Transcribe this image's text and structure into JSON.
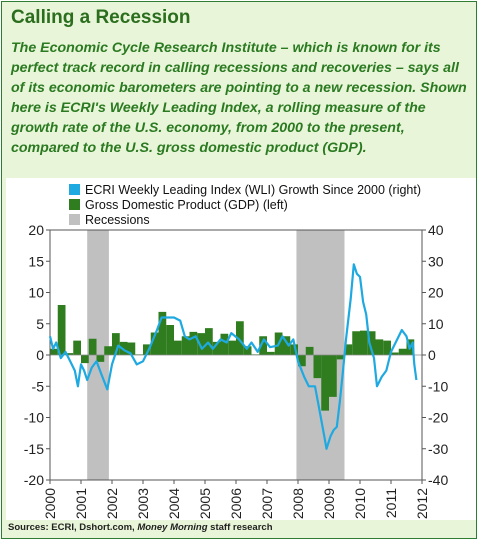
{
  "header": {
    "title": "Calling a Recession",
    "description": "The Economic Cycle Research Institute – which is known for its perfect track record in calling recessions and recoveries – says all of its economic barometers are pointing to a new recession. Shown here is ECRI's Weekly Leading Index, a rolling measure of the growth rate of the U.S. economy, from 2000 to the present, compared to the U.S. gross domestic product (GDP)."
  },
  "footer": {
    "source_prefix": "Sources: ECRI, Dshort.com, ",
    "source_italic": "Money Morning",
    "source_suffix": " staff research"
  },
  "colors": {
    "wli": "#1fa9e1",
    "gdp": "#2f7d1e",
    "recession": "#c0c0c0",
    "frame": "#e8f5d8",
    "title": "#2b6e1e"
  },
  "chart_data": {
    "type": "bar",
    "title": "",
    "legend": {
      "placement": "top-left",
      "entries": [
        "ECRI Weekly Leading Index (WLI) Growth Since 2000 (right)",
        "Gross Domestic Product (GDP) (left)",
        "Recessions"
      ]
    },
    "x_ticks": [
      "2000",
      "2001",
      "2002",
      "2003",
      "2004",
      "2005",
      "2006",
      "2007",
      "2008",
      "2009",
      "2010",
      "2011",
      "2012"
    ],
    "x_range": [
      2000,
      2012
    ],
    "left_axis": {
      "ticks": [
        "20",
        "15",
        "10",
        "5",
        "0",
        "-5",
        "-10",
        "-15",
        "-20"
      ],
      "range": [
        -20,
        20
      ]
    },
    "right_axis": {
      "ticks": [
        "40",
        "30",
        "20",
        "10",
        "0",
        "-10",
        "-20",
        "-30",
        "-40"
      ],
      "range": [
        -40,
        40
      ]
    },
    "grid": false,
    "recessions": [
      {
        "start": 2001.2,
        "end": 2001.9
      },
      {
        "start": 2007.95,
        "end": 2009.5
      }
    ],
    "gdp_series": {
      "name": "Gross Domestic Product (GDP) (left)",
      "axis": "left",
      "values": [
        {
          "q": 2000.0,
          "v": 1.0
        },
        {
          "q": 2000.25,
          "v": 8.0
        },
        {
          "q": 2000.5,
          "v": 0.3
        },
        {
          "q": 2000.75,
          "v": 2.3
        },
        {
          "q": 2001.0,
          "v": -1.3
        },
        {
          "q": 2001.25,
          "v": 2.6
        },
        {
          "q": 2001.5,
          "v": -1.1
        },
        {
          "q": 2001.75,
          "v": 1.4
        },
        {
          "q": 2002.0,
          "v": 3.5
        },
        {
          "q": 2002.25,
          "v": 2.1
        },
        {
          "q": 2002.5,
          "v": 2.0
        },
        {
          "q": 2002.75,
          "v": 0.1
        },
        {
          "q": 2003.0,
          "v": 1.7
        },
        {
          "q": 2003.25,
          "v": 3.6
        },
        {
          "q": 2003.5,
          "v": 6.9
        },
        {
          "q": 2003.75,
          "v": 4.8
        },
        {
          "q": 2004.0,
          "v": 2.3
        },
        {
          "q": 2004.25,
          "v": 3.0
        },
        {
          "q": 2004.5,
          "v": 3.7
        },
        {
          "q": 2004.75,
          "v": 3.5
        },
        {
          "q": 2005.0,
          "v": 4.3
        },
        {
          "q": 2005.25,
          "v": 2.1
        },
        {
          "q": 2005.5,
          "v": 3.4
        },
        {
          "q": 2005.75,
          "v": 2.3
        },
        {
          "q": 2006.0,
          "v": 5.4
        },
        {
          "q": 2006.25,
          "v": 1.4
        },
        {
          "q": 2006.5,
          "v": 0.1
        },
        {
          "q": 2006.75,
          "v": 3.0
        },
        {
          "q": 2007.0,
          "v": 0.5
        },
        {
          "q": 2007.25,
          "v": 3.6
        },
        {
          "q": 2007.5,
          "v": 3.0
        },
        {
          "q": 2007.75,
          "v": 1.7
        },
        {
          "q": 2008.0,
          "v": -1.8
        },
        {
          "q": 2008.25,
          "v": 1.3
        },
        {
          "q": 2008.5,
          "v": -3.7
        },
        {
          "q": 2008.75,
          "v": -8.9
        },
        {
          "q": 2009.0,
          "v": -6.7
        },
        {
          "q": 2009.25,
          "v": -0.7
        },
        {
          "q": 2009.5,
          "v": 1.7
        },
        {
          "q": 2009.75,
          "v": 3.8
        },
        {
          "q": 2010.0,
          "v": 3.9
        },
        {
          "q": 2010.25,
          "v": 3.8
        },
        {
          "q": 2010.5,
          "v": 2.5
        },
        {
          "q": 2010.75,
          "v": 2.3
        },
        {
          "q": 2011.0,
          "v": 0.4
        },
        {
          "q": 2011.25,
          "v": 1.0
        },
        {
          "q": 2011.5,
          "v": 2.5
        }
      ]
    },
    "wli_series": {
      "name": "ECRI Weekly Leading Index (WLI) Growth Since 2000 (right)",
      "axis": "right",
      "points": [
        [
          2000.0,
          6.0
        ],
        [
          2000.1,
          2.0
        ],
        [
          2000.2,
          4.0
        ],
        [
          2000.35,
          -1.0
        ],
        [
          2000.5,
          1.0
        ],
        [
          2000.65,
          -2.0
        ],
        [
          2000.8,
          -5.0
        ],
        [
          2000.9,
          -10.0
        ],
        [
          2001.0,
          -3.0
        ],
        [
          2001.1,
          -5.0
        ],
        [
          2001.2,
          -8.0
        ],
        [
          2001.35,
          -4.0
        ],
        [
          2001.5,
          -2.0
        ],
        [
          2001.65,
          -6.0
        ],
        [
          2001.85,
          -11.0
        ],
        [
          2002.0,
          -3.0
        ],
        [
          2002.2,
          3.0
        ],
        [
          2002.4,
          1.5
        ],
        [
          2002.6,
          0.5
        ],
        [
          2002.8,
          -3.0
        ],
        [
          2003.0,
          -2.0
        ],
        [
          2003.2,
          2.0
        ],
        [
          2003.45,
          8.0
        ],
        [
          2003.6,
          12.0
        ],
        [
          2004.0,
          12.0
        ],
        [
          2004.2,
          11.0
        ],
        [
          2004.35,
          6.0
        ],
        [
          2004.5,
          5.0
        ],
        [
          2004.7,
          6.0
        ],
        [
          2004.9,
          2.0
        ],
        [
          2005.1,
          4.0
        ],
        [
          2005.25,
          2.0
        ],
        [
          2005.5,
          5.0
        ],
        [
          2005.7,
          4.0
        ],
        [
          2005.85,
          7.0
        ],
        [
          2006.1,
          5.0
        ],
        [
          2006.35,
          2.0
        ],
        [
          2006.5,
          4.0
        ],
        [
          2006.7,
          1.0
        ],
        [
          2006.9,
          5.0
        ],
        [
          2007.1,
          2.5
        ],
        [
          2007.35,
          3.0
        ],
        [
          2007.5,
          6.0
        ],
        [
          2007.7,
          3.0
        ],
        [
          2007.85,
          5.0
        ],
        [
          2008.0,
          -2.0
        ],
        [
          2008.2,
          -7.0
        ],
        [
          2008.35,
          -10.0
        ],
        [
          2008.55,
          -10.0
        ],
        [
          2008.7,
          -18.0
        ],
        [
          2008.85,
          -26.0
        ],
        [
          2008.92,
          -30.0
        ],
        [
          2009.05,
          -26.0
        ],
        [
          2009.15,
          -24.0
        ],
        [
          2009.25,
          -23.0
        ],
        [
          2009.35,
          -15.0
        ],
        [
          2009.45,
          -5.0
        ],
        [
          2009.55,
          5.0
        ],
        [
          2009.7,
          18.0
        ],
        [
          2009.8,
          29.0
        ],
        [
          2009.9,
          26.0
        ],
        [
          2010.0,
          25.0
        ],
        [
          2010.1,
          17.0
        ],
        [
          2010.2,
          13.0
        ],
        [
          2010.3,
          4.0
        ],
        [
          2010.45,
          -1.0
        ],
        [
          2010.55,
          -10.0
        ],
        [
          2010.7,
          -7.0
        ],
        [
          2010.85,
          -5.0
        ],
        [
          2011.0,
          1.0
        ],
        [
          2011.2,
          5.0
        ],
        [
          2011.35,
          8.0
        ],
        [
          2011.5,
          6.0
        ],
        [
          2011.6,
          2.0
        ],
        [
          2011.7,
          4.0
        ],
        [
          2011.75,
          -3.0
        ],
        [
          2011.82,
          -8.0
        ]
      ]
    }
  }
}
